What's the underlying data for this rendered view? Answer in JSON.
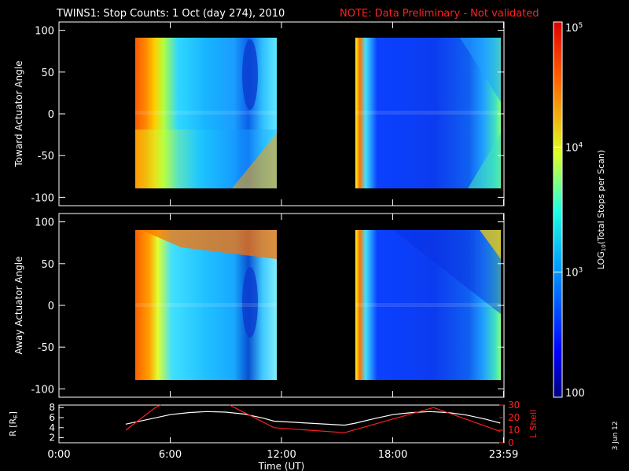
{
  "title": {
    "main": "TWINS1: Stop Counts:  1 Oct (day 274), 2010",
    "note": "NOTE: Data Preliminary - Not validated"
  },
  "date_stamp": "3 Jun 12",
  "colors": {
    "background": "#000000",
    "axes": "#ffffff",
    "note": "#ff2020",
    "r_line": "#ffffff",
    "lshell_line": "#ff2020"
  },
  "chart_data": [
    {
      "type": "heatmap",
      "ylabel": "Toward Actuator Angle",
      "ylim": [
        -110,
        110
      ],
      "yticks": [
        100,
        50,
        0,
        -50,
        -100
      ],
      "xlim": [
        0,
        24
      ],
      "data_segments_hours": [
        [
          3.6,
          11.6
        ],
        [
          15.4,
          23.8
        ]
      ],
      "colorscale": "log10, 100 to 1e5"
    },
    {
      "type": "heatmap",
      "ylabel": "Away Actuator Angle",
      "ylim": [
        -110,
        110
      ],
      "yticks": [
        100,
        50,
        0,
        -50,
        -100
      ],
      "xlim": [
        0,
        24
      ],
      "xlabel": "Time (UT)",
      "xtick_labels": [
        "0:00",
        "6:00",
        "12:00",
        "18:00",
        "23:59"
      ],
      "xtick_hours": [
        0,
        6,
        12,
        18,
        23.98
      ],
      "data_segments_hours": [
        [
          3.6,
          11.6
        ],
        [
          15.4,
          23.8
        ]
      ]
    },
    {
      "type": "line",
      "ylabel_left": "R [R",
      "ylabel_left_sub": "E",
      "ylabel_left_end": "]",
      "ylabel_right": "L Shell",
      "ylim_left": [
        1,
        8.5
      ],
      "yticks_left": [
        2,
        4,
        6,
        8
      ],
      "ylim_right": [
        0,
        30
      ],
      "yticks_right": [
        0,
        10,
        20,
        30
      ],
      "series": [
        {
          "axis": "left",
          "x": [
            3.6,
            5,
            6,
            7,
            8,
            9,
            10,
            11,
            11.6,
            15.4,
            16,
            17,
            18,
            19,
            20,
            21,
            22,
            23,
            23.8
          ],
          "y": [
            4.7,
            5.8,
            6.6,
            7.0,
            7.2,
            7.1,
            6.7,
            5.9,
            5.3,
            4.5,
            4.9,
            5.8,
            6.6,
            7.0,
            7.2,
            7.0,
            6.5,
            5.7,
            4.9
          ]
        },
        {
          "axis": "right",
          "x": [
            3.6,
            5.2,
            5.5,
            null,
            9.2,
            9.6,
            11.6,
            15.4,
            20.2,
            23.8
          ],
          "y": [
            10,
            28,
            32,
            null,
            32,
            27,
            12,
            8,
            28,
            9
          ]
        }
      ]
    },
    {
      "type": "colorbar",
      "label_pre": "LOG",
      "label_sub": "10",
      "label_post": "(Total Stops per Scan)",
      "range": [
        100,
        100000
      ],
      "ticks": [
        {
          "value": 100,
          "base": "100",
          "exp": ""
        },
        {
          "value": 1000,
          "base": "10",
          "exp": "3"
        },
        {
          "value": 10000,
          "base": "10",
          "exp": "4"
        },
        {
          "value": 100000,
          "base": "10",
          "exp": "5"
        }
      ]
    }
  ]
}
